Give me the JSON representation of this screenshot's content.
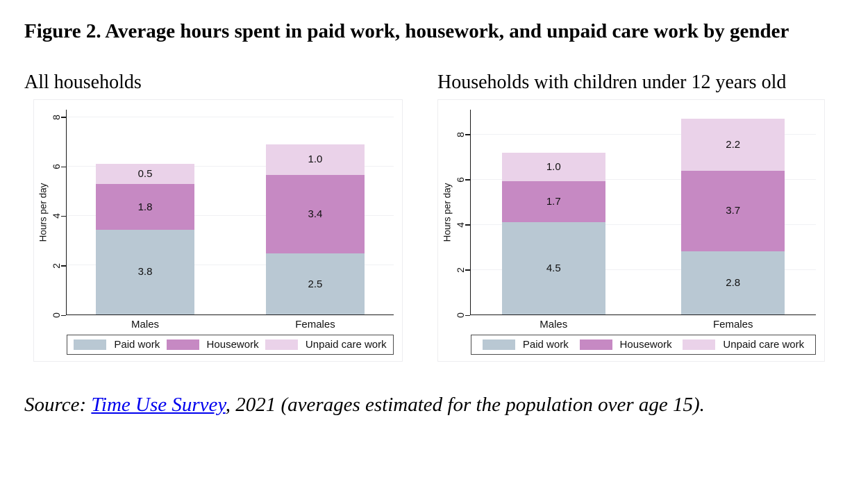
{
  "figure": {
    "title": "Figure 2. Average hours spent in paid work, housework, and unpaid care work by gender",
    "source": {
      "prefix": "Source: ",
      "link_text": "Time Use Survey",
      "suffix": ", 2021 (averages estimated for the population over age 15)."
    }
  },
  "colors": {
    "paid_work": "#b9c8d3",
    "housework": "#c689c3",
    "unpaid_care_work": "#ead2e9",
    "axis": "#1a1a1a",
    "gridline": "#f0f1f4",
    "legend_border": "#4d4d4d",
    "link": "#0000ee"
  },
  "chart_data": [
    {
      "type": "bar",
      "stacked": true,
      "title": "All households",
      "ylabel": "Hours per day",
      "categories": [
        "Males",
        "Females"
      ],
      "series": [
        {
          "name": "Paid work",
          "color_key": "paid_work",
          "values": [
            3.8,
            2.5
          ]
        },
        {
          "name": "Housework",
          "color_key": "housework",
          "values": [
            1.8,
            3.4
          ]
        },
        {
          "name": "Unpaid care work",
          "color_key": "unpaid_care_work",
          "values": [
            0.5,
            1.0
          ]
        }
      ],
      "totals": [
        6.1,
        6.9
      ],
      "yticks": [
        0,
        2,
        4,
        6,
        8
      ],
      "ylim": [
        0,
        8.3
      ],
      "grid": true,
      "legend_position": "bottom"
    },
    {
      "type": "bar",
      "stacked": true,
      "title": "Households with children under 12 years old",
      "ylabel": "Hours per day",
      "categories": [
        "Males",
        "Females"
      ],
      "series": [
        {
          "name": "Paid work",
          "color_key": "paid_work",
          "values": [
            4.5,
            2.8
          ]
        },
        {
          "name": "Housework",
          "color_key": "housework",
          "values": [
            1.7,
            3.7
          ]
        },
        {
          "name": "Unpaid care work",
          "color_key": "unpaid_care_work",
          "values": [
            1.0,
            2.2
          ]
        }
      ],
      "totals": [
        7.2,
        8.7
      ],
      "yticks": [
        0,
        2,
        4,
        6,
        8
      ],
      "ylim": [
        0,
        9.1
      ],
      "grid": true,
      "legend_position": "bottom"
    }
  ]
}
